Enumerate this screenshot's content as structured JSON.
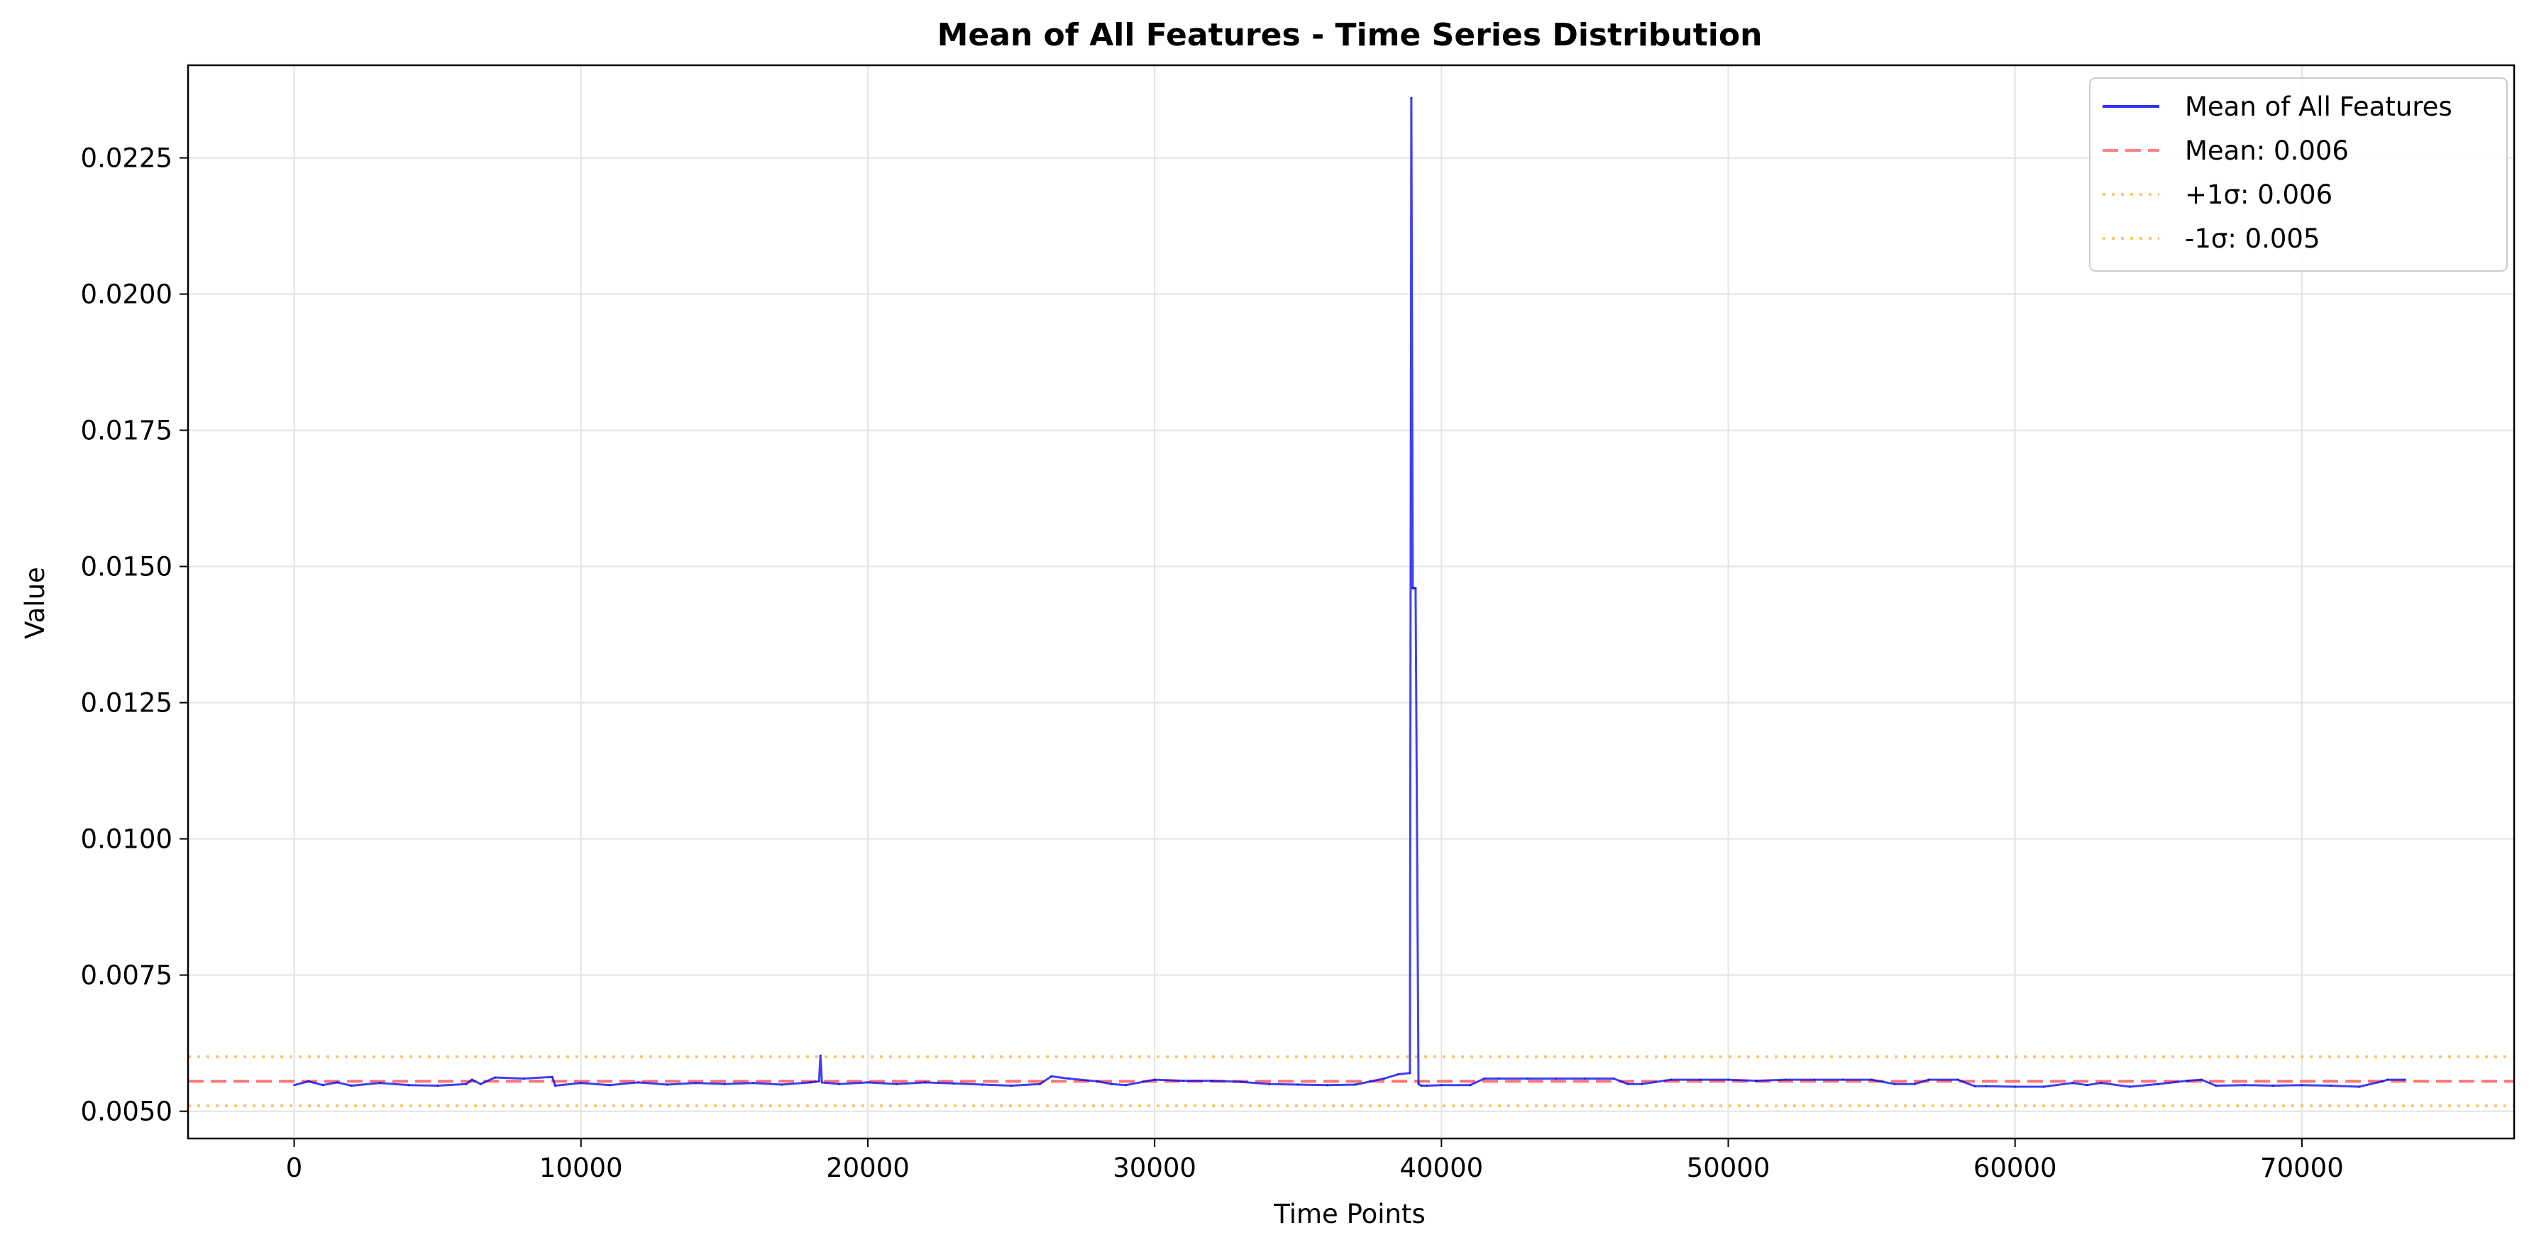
{
  "chart_data": {
    "type": "line",
    "title": "Mean of All Features - Time Series Distribution",
    "xlabel": "Time Points",
    "ylabel": "Value",
    "xlim": [
      -3700,
      77400
    ],
    "ylim": [
      0.0045,
      0.0242
    ],
    "x_ticks": [
      {
        "value": 0,
        "label": "0"
      },
      {
        "value": 10000,
        "label": "10000"
      },
      {
        "value": 20000,
        "label": "20000"
      },
      {
        "value": 30000,
        "label": "30000"
      },
      {
        "value": 40000,
        "label": "40000"
      },
      {
        "value": 50000,
        "label": "50000"
      },
      {
        "value": 60000,
        "label": "60000"
      },
      {
        "value": 70000,
        "label": "70000"
      }
    ],
    "y_ticks": [
      {
        "value": 0.005,
        "label": "0.0050"
      },
      {
        "value": 0.0075,
        "label": "0.0075"
      },
      {
        "value": 0.01,
        "label": "0.0100"
      },
      {
        "value": 0.0125,
        "label": "0.0125"
      },
      {
        "value": 0.015,
        "label": "0.0150"
      },
      {
        "value": 0.0175,
        "label": "0.0175"
      },
      {
        "value": 0.02,
        "label": "0.0200"
      },
      {
        "value": 0.0225,
        "label": "0.0225"
      }
    ],
    "grid": true,
    "legend_position": "top-right",
    "series": [
      {
        "name": "Mean of All Features",
        "color": "#0000ee",
        "style": "solid",
        "x": [
          0,
          500,
          1000,
          1500,
          2000,
          3000,
          4000,
          5000,
          6000,
          6200,
          6500,
          7000,
          8000,
          9000,
          9100,
          10000,
          11000,
          12000,
          13000,
          14000,
          15000,
          16000,
          17000,
          18000,
          18300,
          18350,
          18400,
          19000,
          20000,
          21000,
          22000,
          23000,
          24000,
          25000,
          26000,
          26400,
          27000,
          28000,
          28500,
          29000,
          30000,
          31000,
          32000,
          33000,
          34000,
          35000,
          36000,
          37000,
          38000,
          38500,
          38900,
          38950,
          39000,
          39050,
          39100,
          39200,
          39300,
          39500,
          40000,
          41000,
          41500,
          42000,
          43000,
          44000,
          45000,
          46000,
          46500,
          47000,
          48000,
          49000,
          50000,
          51000,
          52000,
          53000,
          54000,
          55000,
          55800,
          56500,
          57000,
          58000,
          58600,
          59000,
          60000,
          61000,
          62000,
          62500,
          63000,
          64000,
          65000,
          66000,
          66500,
          67000,
          68000,
          69000,
          70000,
          71000,
          72000,
          72800,
          73000,
          73600
        ],
        "y": [
          0.00548,
          0.00555,
          0.00548,
          0.00553,
          0.00547,
          0.00552,
          0.00548,
          0.00547,
          0.0055,
          0.00558,
          0.0055,
          0.00562,
          0.0056,
          0.00563,
          0.00547,
          0.00552,
          0.00548,
          0.00553,
          0.00549,
          0.00552,
          0.0055,
          0.00552,
          0.00549,
          0.00553,
          0.00555,
          0.00602,
          0.00553,
          0.0055,
          0.00553,
          0.0055,
          0.00553,
          0.00551,
          0.00549,
          0.00547,
          0.0055,
          0.00564,
          0.0056,
          0.00555,
          0.0055,
          0.00548,
          0.00558,
          0.00556,
          0.00556,
          0.00554,
          0.0055,
          0.00549,
          0.00548,
          0.00549,
          0.0056,
          0.00568,
          0.0057,
          0.0236,
          0.0146,
          0.0146,
          0.0146,
          0.0055,
          0.00547,
          0.00547,
          0.00548,
          0.00548,
          0.0056,
          0.0056,
          0.0056,
          0.0056,
          0.0056,
          0.0056,
          0.0055,
          0.0055,
          0.00558,
          0.00558,
          0.00558,
          0.00556,
          0.00558,
          0.00558,
          0.00558,
          0.00558,
          0.0055,
          0.0055,
          0.00558,
          0.00558,
          0.00546,
          0.00546,
          0.00545,
          0.00545,
          0.00552,
          0.00548,
          0.00552,
          0.00545,
          0.0055,
          0.00556,
          0.00558,
          0.00547,
          0.00548,
          0.00547,
          0.00548,
          0.00547,
          0.00545,
          0.00555,
          0.00558,
          0.00558
        ]
      },
      {
        "name": "Mean: 0.006",
        "color": "#ff6666",
        "style": "dashed",
        "hline": 0.00555
      },
      {
        "name": "+1σ: 0.006",
        "color": "#ffb84d",
        "style": "dotted",
        "hline": 0.006
      },
      {
        "name": "-1σ: 0.005",
        "color": "#ffb84d",
        "style": "dotted",
        "hline": 0.0051
      }
    ]
  }
}
